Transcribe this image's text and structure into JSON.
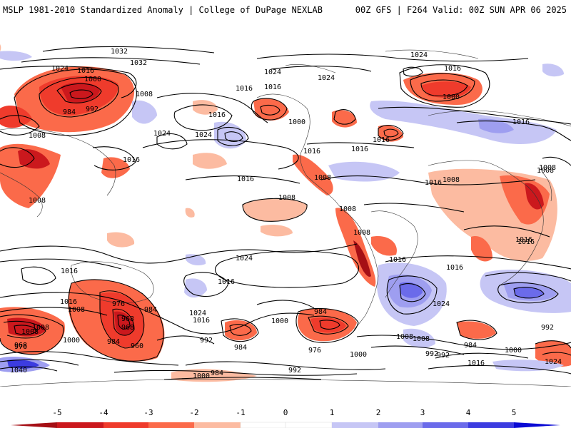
{
  "header": {
    "title_left": "MSLP 1981-2010 Standardized Anomaly | College of DuPage NEXLAB",
    "title_right": "00Z GFS | F264 Valid: 00Z SUN APR 06 2025"
  },
  "map": {
    "projection": "cylindrical equidistant, global",
    "isobar_labels": [
      "1032",
      "1032",
      "1024",
      "1016",
      "1000",
      "1008",
      "984",
      "992",
      "1008",
      "1016",
      "1024",
      "1024",
      "1016",
      "1008",
      "1016",
      "1016",
      "1024",
      "1016",
      "1000",
      "1016",
      "1024",
      "1016",
      "1024",
      "1008",
      "1008",
      "1016",
      "1016",
      "1008",
      "1016",
      "1008",
      "1016",
      "1008",
      "1016",
      "1008",
      "1016",
      "1000",
      "976",
      "968",
      "984",
      "968",
      "960",
      "984",
      "1024",
      "1016",
      "992",
      "1016",
      "1008",
      "1000",
      "984",
      "976",
      "984",
      "1024",
      "1016",
      "1000",
      "992",
      "1008",
      "976",
      "992",
      "1008",
      "968",
      "1040",
      "1000",
      "1016",
      "1000",
      "984",
      "992",
      "984",
      "1016",
      "1000",
      "1008",
      "992",
      "1024",
      "1024",
      "1016",
      "1008",
      "1016",
      "1008"
    ],
    "anomaly_colors": {
      "neg5": "#a50f15",
      "neg4": "#cb181d",
      "neg3": "#ef3b2c",
      "neg2": "#fb6a4a",
      "neg1": "#fcbba1",
      "zero": "#ffffff",
      "pos1": "#c6c6f5",
      "pos2": "#9e9ef0",
      "pos3": "#6b6bea",
      "pos4": "#3c3ce0",
      "pos5": "#0a0ad4"
    }
  },
  "colorbar": {
    "tick_labels": [
      "-5",
      "-4",
      "-3",
      "-2",
      "-1",
      "0",
      "1",
      "2",
      "3",
      "4",
      "5"
    ]
  }
}
